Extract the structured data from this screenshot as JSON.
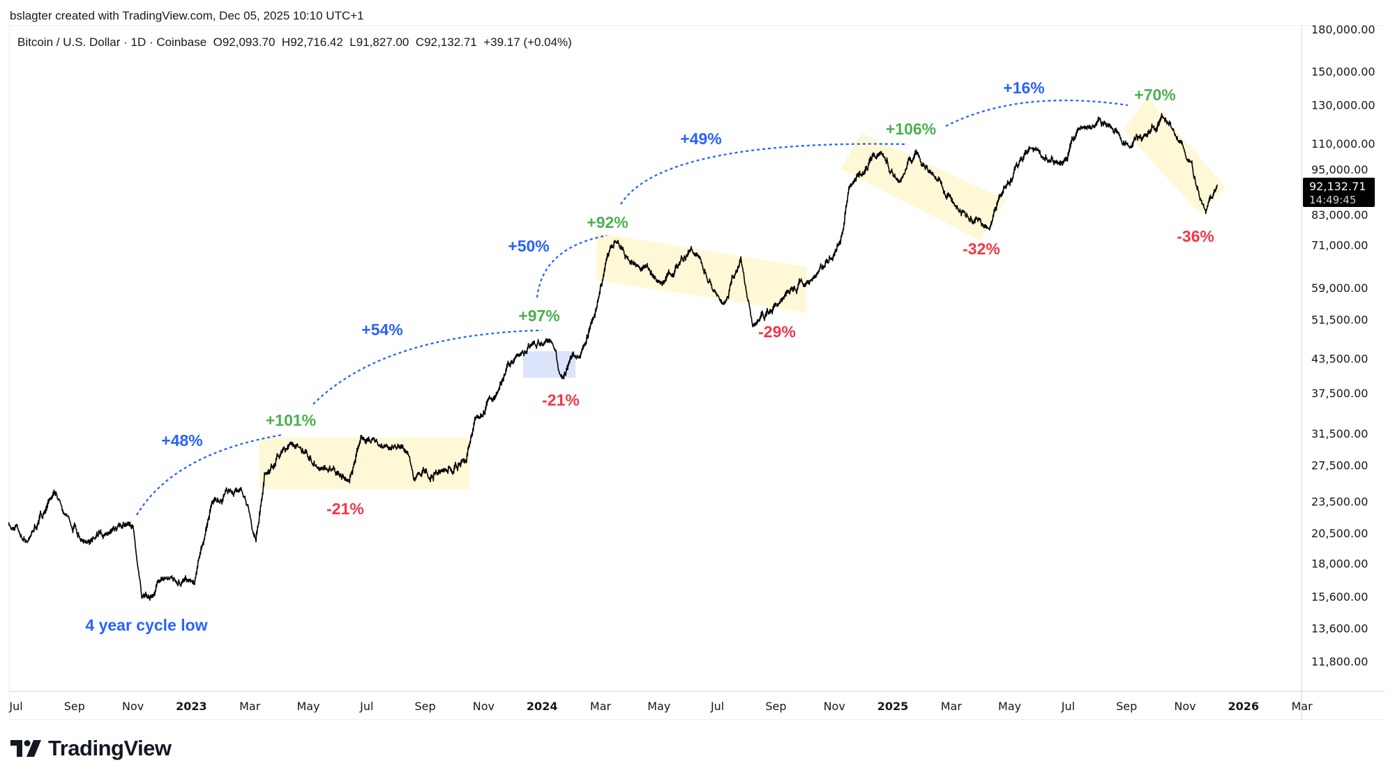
{
  "header": {
    "credit": "bslagter created with TradingView.com, Dec 05, 2025 10:10 UTC+1",
    "symbol": "Bitcoin / U.S. Dollar · 1D · Coinbase",
    "open": "O92,093.70",
    "high": "H92,716.42",
    "low": "L91,827.00",
    "close": "C92,132.71",
    "change": "+39.17 (+0.04%)"
  },
  "price_tag": {
    "price": "92,132.71",
    "countdown": "14:49:45"
  },
  "footer": {
    "logo": "TradingView"
  },
  "colors": {
    "up": "#4caf50",
    "down": "#f23645",
    "cycle": "#2962ff",
    "zone": "#fff8d6",
    "zone_blue": "#dce4fb"
  },
  "chart_data": {
    "type": "line",
    "title": "Bitcoin / U.S. Dollar · 1D · Coinbase",
    "scale": "log",
    "ylim": [
      10500,
      180000
    ],
    "x_unit": "months since Jul 2022",
    "series": [
      {
        "name": "BTCUSD",
        "points": [
          [
            -0.25,
            21300
          ],
          [
            0.37,
            19700
          ],
          [
            1.3,
            24500
          ],
          [
            1.6,
            22500
          ],
          [
            2.4,
            19700
          ],
          [
            3.2,
            20500
          ],
          [
            4.0,
            21000
          ],
          [
            4.3,
            15500
          ],
          [
            5.0,
            16800
          ],
          [
            6.1,
            16500
          ],
          [
            6.7,
            23400
          ],
          [
            7.7,
            24800
          ],
          [
            8.2,
            19900
          ],
          [
            8.5,
            26400
          ],
          [
            9.4,
            30300
          ],
          [
            10.4,
            27000
          ],
          [
            11.4,
            25700
          ],
          [
            11.8,
            31000
          ],
          [
            12.8,
            29500
          ],
          [
            13.4,
            29000
          ],
          [
            13.6,
            25800
          ],
          [
            14.6,
            26800
          ],
          [
            15.4,
            28000
          ],
          [
            15.7,
            33600
          ],
          [
            16.4,
            37000
          ],
          [
            17.1,
            44000
          ],
          [
            18.2,
            47000
          ],
          [
            18.7,
            40000
          ],
          [
            19.3,
            44000
          ],
          [
            19.8,
            52500
          ],
          [
            20.2,
            67000
          ],
          [
            20.5,
            72000
          ],
          [
            21.2,
            65000
          ],
          [
            22.1,
            60000
          ],
          [
            23.1,
            70000
          ],
          [
            24.2,
            55000
          ],
          [
            24.8,
            67000
          ],
          [
            25.2,
            50000
          ],
          [
            26.2,
            56000
          ],
          [
            27.3,
            62000
          ],
          [
            28.2,
            72000
          ],
          [
            28.5,
            91000
          ],
          [
            29.6,
            106000
          ],
          [
            30.2,
            93000
          ],
          [
            30.8,
            106000
          ],
          [
            31.4,
            96000
          ],
          [
            32.1,
            84600
          ],
          [
            33.3,
            76000
          ],
          [
            33.8,
            91000
          ],
          [
            34.7,
            108000
          ],
          [
            35.8,
            101000
          ],
          [
            36.5,
            118000
          ],
          [
            37.4,
            119000
          ],
          [
            38.1,
            108000
          ],
          [
            38.7,
            114000
          ],
          [
            39.2,
            124000
          ],
          [
            39.9,
            110000
          ],
          [
            40.7,
            82000
          ],
          [
            41.1,
            92132.71
          ]
        ]
      }
    ],
    "y_ticks": [
      "180,000.00",
      "150,000.00",
      "130,000.00",
      "110,000.00",
      "95,000.00",
      "83,000.00",
      "71,000.00",
      "59,000.00",
      "51,500.00",
      "43,500.00",
      "37,500.00",
      "31,500.00",
      "27,500.00",
      "23,500.00",
      "20,500.00",
      "18,000.00",
      "15,600.00",
      "13,600.00",
      "11,800.00"
    ],
    "y_tick_values": [
      180000,
      150000,
      130000,
      110000,
      95000,
      83000,
      71000,
      59000,
      51500,
      43500,
      37500,
      31500,
      27500,
      23500,
      20500,
      18000,
      15600,
      13600,
      11800
    ],
    "x_ticks": [
      {
        "label": "Jul",
        "m": 0,
        "bold": false
      },
      {
        "label": "Sep",
        "m": 2,
        "bold": false
      },
      {
        "label": "Nov",
        "m": 4,
        "bold": false
      },
      {
        "label": "2023",
        "m": 6,
        "bold": true
      },
      {
        "label": "Mar",
        "m": 8,
        "bold": false
      },
      {
        "label": "May",
        "m": 10,
        "bold": false
      },
      {
        "label": "Jul",
        "m": 12,
        "bold": false
      },
      {
        "label": "Sep",
        "m": 14,
        "bold": false
      },
      {
        "label": "Nov",
        "m": 16,
        "bold": false
      },
      {
        "label": "2024",
        "m": 18,
        "bold": true
      },
      {
        "label": "Mar",
        "m": 20,
        "bold": false
      },
      {
        "label": "May",
        "m": 22,
        "bold": false
      },
      {
        "label": "Jul",
        "m": 24,
        "bold": false
      },
      {
        "label": "Sep",
        "m": 26,
        "bold": false
      },
      {
        "label": "Nov",
        "m": 28,
        "bold": false
      },
      {
        "label": "2025",
        "m": 30,
        "bold": true
      },
      {
        "label": "Mar",
        "m": 32,
        "bold": false
      },
      {
        "label": "May",
        "m": 34,
        "bold": false
      },
      {
        "label": "Jul",
        "m": 36,
        "bold": false
      },
      {
        "label": "Sep",
        "m": 38,
        "bold": false
      },
      {
        "label": "Nov",
        "m": 40,
        "bold": false
      },
      {
        "label": "2026",
        "m": 42,
        "bold": true
      },
      {
        "label": "Mar",
        "m": 44,
        "bold": false
      }
    ],
    "annotations": {
      "cycle_low": "4 year cycle low",
      "a1": "+48%",
      "a2": "+101%",
      "a3": "-21%",
      "a4": "+54%",
      "a5": "+97%",
      "a6": "-21%",
      "a7": "+50%",
      "a8": "+92%",
      "a9": "+49%",
      "a10": "-29%",
      "a11": "+106%",
      "a12": "-32%",
      "a13": "+16%",
      "a14": "+70%",
      "a15": "-36%"
    }
  }
}
